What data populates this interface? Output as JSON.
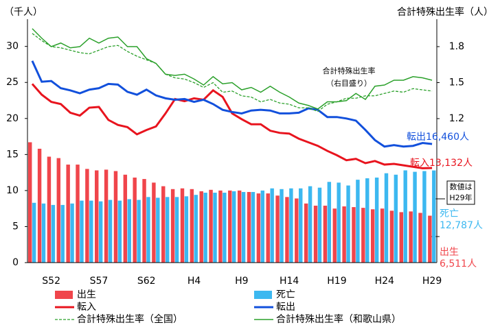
{
  "chart_data": {
    "type": "combo",
    "title_left": "（千人）",
    "title_right": "合計特殊出生率（人）",
    "annotation": [
      "合計特殊出生率",
      "（右目盛り）"
    ],
    "note": [
      "数値は",
      "H29年"
    ],
    "categories": [
      null,
      null,
      "S52",
      null,
      null,
      null,
      null,
      "S57",
      null,
      null,
      null,
      null,
      "S62",
      null,
      null,
      null,
      null,
      "H4",
      null,
      null,
      null,
      null,
      "H9",
      null,
      null,
      null,
      null,
      "H14",
      null,
      null,
      null,
      null,
      "H19",
      null,
      null,
      null,
      null,
      "H24",
      null,
      null,
      null,
      null,
      "H29"
    ],
    "ylim": [
      0,
      33.3
    ],
    "yticks": [
      0,
      5,
      10,
      15,
      20,
      25,
      30
    ],
    "y2lim": [
      0,
      2.0
    ],
    "y2ticks": [
      1.2,
      1.5,
      1.8
    ],
    "series": [
      {
        "name": "出生",
        "type": "bar",
        "color": "#f0454b",
        "end_label": [
          "出生",
          "6,511人"
        ],
        "values": [
          16.7,
          15.8,
          14.7,
          14.5,
          13.6,
          13.6,
          13.0,
          12.8,
          12.9,
          12.7,
          12.2,
          11.8,
          11.6,
          11.1,
          10.6,
          10.2,
          10.3,
          10.2,
          9.9,
          10.1,
          10.0,
          10.0,
          10.0,
          9.8,
          9.6,
          9.6,
          9.3,
          9.1,
          8.9,
          8.2,
          7.9,
          7.9,
          7.5,
          7.8,
          7.7,
          7.6,
          7.4,
          7.5,
          7.2,
          7.0,
          7.1,
          6.9,
          6.511
        ]
      },
      {
        "name": "死亡",
        "type": "bar",
        "color": "#3cb8f0",
        "end_label": [
          "死亡",
          "12,787人"
        ],
        "values": [
          8.3,
          8.2,
          8.0,
          8.0,
          8.2,
          8.6,
          8.6,
          8.5,
          8.7,
          8.6,
          8.8,
          8.7,
          9.1,
          9.0,
          9.1,
          9.1,
          9.2,
          9.4,
          9.7,
          9.7,
          9.7,
          9.9,
          9.8,
          9.8,
          10.0,
          10.3,
          10.2,
          10.3,
          10.3,
          10.6,
          10.4,
          11.2,
          11.1,
          10.7,
          11.5,
          11.7,
          11.8,
          12.4,
          12.2,
          12.8,
          12.6,
          12.7,
          12.787
        ]
      },
      {
        "name": "転入",
        "type": "line",
        "color": "#e8141e",
        "width": 3,
        "end_label": [
          "転入13,132人"
        ],
        "values": [
          24.8,
          23.3,
          22.3,
          22.0,
          20.8,
          20.4,
          21.5,
          21.6,
          19.8,
          19.1,
          18.8,
          17.8,
          18.4,
          18.9,
          20.7,
          22.7,
          22.4,
          22.8,
          22.6,
          23.9,
          23.0,
          20.7,
          19.9,
          19.2,
          19.2,
          18.3,
          18.0,
          17.9,
          17.2,
          16.7,
          16.2,
          15.5,
          14.9,
          14.2,
          14.4,
          13.8,
          14.1,
          13.6,
          13.7,
          13.5,
          13.3,
          13.1,
          13.132
        ]
      },
      {
        "name": "転出",
        "type": "line",
        "color": "#1250dc",
        "width": 3,
        "end_label": [
          "転出16,460人"
        ],
        "values": [
          28.0,
          25.1,
          25.2,
          24.2,
          23.9,
          23.5,
          24.0,
          24.2,
          24.8,
          24.7,
          23.7,
          23.3,
          24.0,
          23.2,
          22.8,
          22.6,
          22.7,
          22.3,
          22.6,
          22.0,
          21.2,
          20.9,
          20.7,
          21.1,
          21.2,
          21.1,
          20.7,
          20.7,
          20.8,
          21.4,
          21.2,
          20.2,
          20.2,
          20.0,
          19.7,
          18.4,
          17.0,
          16.1,
          16.3,
          16.1,
          16.2,
          16.6,
          16.46
        ]
      },
      {
        "name": "合計特殊出生率（全国）",
        "type": "line",
        "axis": "y2",
        "dash": true,
        "color": "#2aa02a",
        "width": 1.3,
        "values": [
          1.91,
          1.85,
          1.8,
          1.79,
          1.77,
          1.75,
          1.74,
          1.77,
          1.8,
          1.81,
          1.76,
          1.72,
          1.69,
          1.66,
          1.57,
          1.54,
          1.53,
          1.5,
          1.46,
          1.5,
          1.42,
          1.43,
          1.39,
          1.38,
          1.34,
          1.36,
          1.33,
          1.32,
          1.29,
          1.29,
          1.26,
          1.32,
          1.34,
          1.37,
          1.37,
          1.39,
          1.39,
          1.41,
          1.43,
          1.42,
          1.45,
          1.44,
          1.43
        ]
      },
      {
        "name": "合計特殊出生率（和歌山県）",
        "type": "line",
        "axis": "y2",
        "dash": false,
        "color": "#2aa02a",
        "width": 1.5,
        "values": [
          1.95,
          1.87,
          1.8,
          1.83,
          1.79,
          1.8,
          1.87,
          1.83,
          1.87,
          1.88,
          1.8,
          1.8,
          1.7,
          1.66,
          1.57,
          1.56,
          1.57,
          1.53,
          1.48,
          1.55,
          1.49,
          1.5,
          1.44,
          1.46,
          1.42,
          1.47,
          1.42,
          1.38,
          1.33,
          1.31,
          1.28,
          1.34,
          1.34,
          1.35,
          1.41,
          1.36,
          1.47,
          1.48,
          1.52,
          1.52,
          1.55,
          1.54,
          1.52
        ]
      }
    ]
  }
}
